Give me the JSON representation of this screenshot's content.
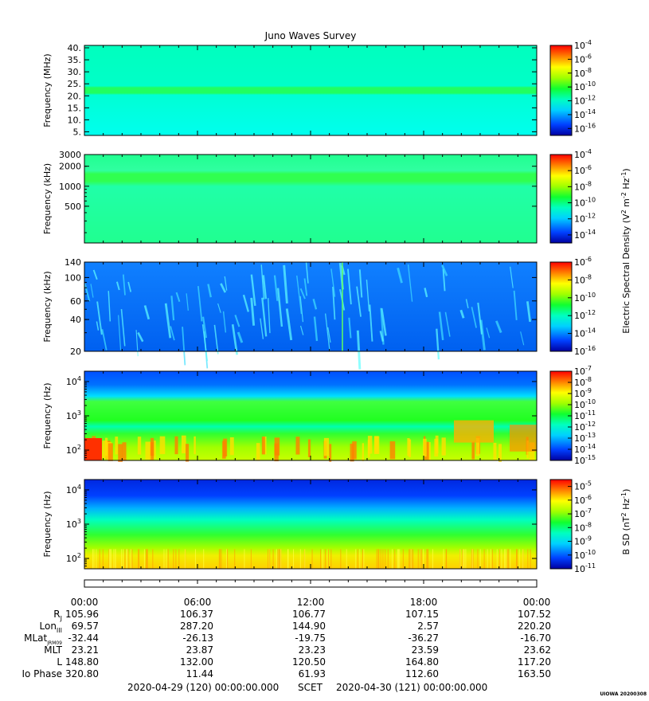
{
  "title": "Juno Waves Survey",
  "footer_tag": "UIOWA 20200308",
  "scet": {
    "start": "2020-04-29 (120) 00:00:00.000",
    "label": "SCET",
    "end": "2020-04-30 (121) 00:00:00.000"
  },
  "time_ticks": [
    "00:00",
    "06:00",
    "12:00",
    "18:00",
    "00:00"
  ],
  "ephemeris": [
    {
      "label": "R",
      "sub": "J",
      "values": [
        "105.96",
        "106.37",
        "106.77",
        "107.15",
        "107.52"
      ]
    },
    {
      "label": "Lon",
      "sub": "III",
      "values": [
        "69.57",
        "287.20",
        "144.90",
        "2.57",
        "220.20"
      ]
    },
    {
      "label": "MLat",
      "sub": "JRM09",
      "values": [
        "-32.44",
        "-26.13",
        "-19.75",
        "-36.27",
        "-16.70"
      ]
    },
    {
      "label": "MLT",
      "sub": "",
      "values": [
        "23.21",
        "23.87",
        "23.23",
        "23.59",
        "23.62"
      ]
    },
    {
      "label": "L",
      "sub": "",
      "values": [
        "148.80",
        "132.00",
        "120.50",
        "164.80",
        "117.20"
      ]
    },
    {
      "label": "Io Phase",
      "sub": "",
      "values": [
        "320.80",
        "11.44",
        "61.93",
        "112.60",
        "163.50"
      ]
    }
  ],
  "chart_data": [
    {
      "type": "heatmap",
      "ylabel": "Frequency (MHz)",
      "yscale": "linear",
      "ylim": [
        3.5,
        41
      ],
      "yticks": [
        5,
        10,
        15,
        20,
        25,
        30,
        35,
        40
      ],
      "ytick_labels": [
        "5.",
        "10.",
        "15.",
        "20.",
        "25.",
        "30.",
        "35.",
        "40."
      ],
      "colorbar": {
        "tick_labels": [
          "10-4",
          "10-6",
          "10-8",
          "10-10",
          "10-12",
          "10-14",
          "10-16"
        ],
        "range_exp": [
          -17,
          -4
        ]
      }
    },
    {
      "type": "heatmap",
      "ylabel": "Frequency (kHz)",
      "yscale": "log",
      "ylim": [
        140,
        3000
      ],
      "yticks": [
        500,
        1000,
        2000,
        3000
      ],
      "ytick_labels": [
        "500",
        "1000",
        "2000",
        "3000"
      ],
      "colorbar": {
        "tick_labels": [
          "10-4",
          "10-6",
          "10-8",
          "10-10",
          "10-12",
          "10-14"
        ],
        "range_exp": [
          -15,
          -4
        ]
      }
    },
    {
      "type": "heatmap",
      "ylabel": "Frequency (kHz)",
      "yscale": "log",
      "ylim": [
        20,
        140
      ],
      "yticks": [
        20,
        40,
        60,
        100,
        140
      ],
      "ytick_labels": [
        "20",
        "40",
        "60",
        "100",
        "140"
      ],
      "colorbar": {
        "tick_labels": [
          "10-6",
          "10-8",
          "10-10",
          "10-12",
          "10-14",
          "10-16"
        ],
        "range_exp": [
          -16,
          -6
        ]
      }
    },
    {
      "type": "heatmap",
      "ylabel": "Frequency (Hz)",
      "yscale": "log",
      "ylim": [
        50,
        20000
      ],
      "yticks": [
        100,
        1000,
        10000
      ],
      "ytick_labels": [
        "10^2",
        "10^3",
        "10^4"
      ],
      "colorbar": {
        "tick_labels": [
          "10-7",
          "10-8",
          "10-9",
          "10-10",
          "10-11",
          "10-12",
          "10-13",
          "10-14",
          "10-15"
        ],
        "range_exp": [
          -15,
          -7
        ]
      }
    },
    {
      "type": "heatmap",
      "ylabel": "Frequency (Hz)",
      "yscale": "log",
      "ylim": [
        50,
        20000
      ],
      "yticks": [
        100,
        1000,
        10000
      ],
      "ytick_labels": [
        "10^2",
        "10^3",
        "10^4"
      ],
      "colorbar": {
        "tick_labels": [
          "10-5",
          "10-6",
          "10-7",
          "10-8",
          "10-9",
          "10-10",
          "10-11"
        ],
        "range_exp": [
          -11,
          -4.5
        ]
      }
    }
  ],
  "colorbar_labels": {
    "electric": "Electric Spectral Density (V^2 m^-2 Hz^-1)",
    "magnetic": "B SD (nT^2 Hz^-1)"
  }
}
